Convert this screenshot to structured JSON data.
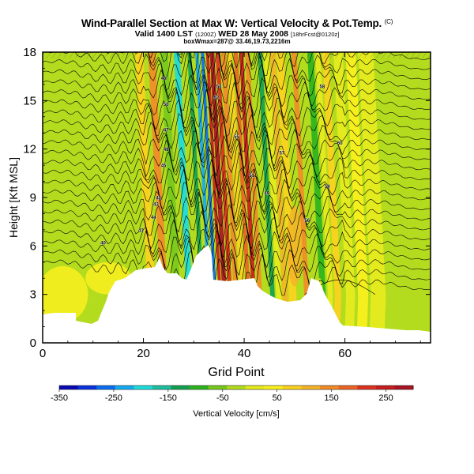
{
  "header": {
    "title": "Wind-Parallel Section at Max W: Vertical Velocity & Pot.Temp.",
    "title_mark": "(C)",
    "valid_prefix": "Valid 1400 LST",
    "valid_time_code": "(1200Z)",
    "valid_date": "WED 28 May 2008",
    "forecast_note": "[18hrFcst@0120z]",
    "box_note": "boxWmax=287@ 33.46,19.73,2216m"
  },
  "chart_data": {
    "type": "heatmap",
    "xlabel": "Grid Point",
    "ylabel": "Height [Kft MSL]",
    "xlim": [
      0,
      77
    ],
    "ylim": [
      0,
      18
    ],
    "xticks": [
      0,
      20,
      40,
      60
    ],
    "yticks": [
      0,
      3,
      6,
      9,
      12,
      15,
      18
    ],
    "max_vertical_velocity_cm_s": 287,
    "colorbar": {
      "label": "Vertical Velocity [cm/s]",
      "ticks": [
        -350,
        -250,
        -150,
        -50,
        50,
        150,
        250
      ],
      "range": [
        -350,
        300
      ],
      "colors": [
        "#0a0ab4",
        "#0a32dc",
        "#0a6ef0",
        "#14aaf0",
        "#1edcdc",
        "#1ebea0",
        "#14a050",
        "#2db41e",
        "#78c81e",
        "#b4dc1e",
        "#e6eb1e",
        "#faf01e",
        "#fad21e",
        "#f5b428",
        "#f08c28",
        "#eb6423",
        "#dc321e",
        "#c81e1e",
        "#aa1423"
      ]
    },
    "theta_contour_labels": [
      "40",
      "41",
      "44",
      "43",
      "42",
      "45",
      "48",
      "47",
      "50",
      "46",
      "52",
      "53",
      "55",
      "51",
      "49",
      "57",
      "56",
      "54",
      "60",
      "58"
    ]
  }
}
